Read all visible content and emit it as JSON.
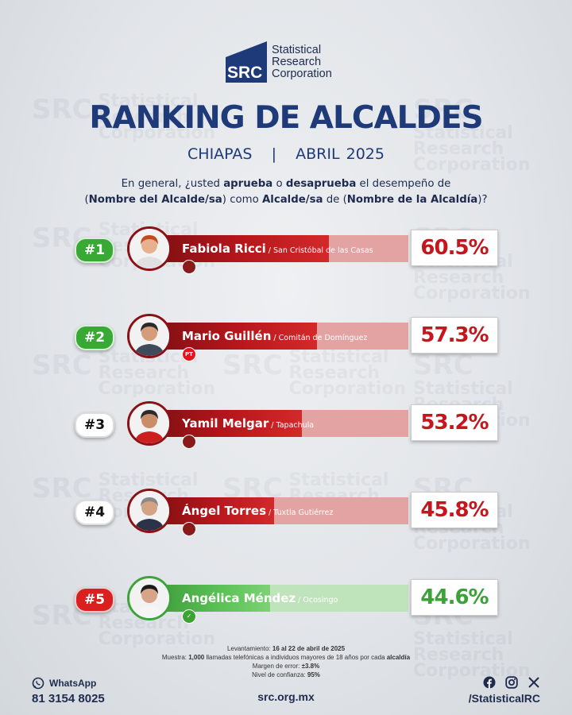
{
  "brand": {
    "mark": "SRC",
    "line1": "Statistical",
    "line2": "Research",
    "line3": "Corporation"
  },
  "colors": {
    "navy": "#1f3a78",
    "red": "#c4161c",
    "green": "#3aa236"
  },
  "header": {
    "title": "RANKING DE ALCALDES",
    "subtitle_place": "CHIAPAS",
    "subtitle_sep": "|",
    "subtitle_date": "ABRIL 2025"
  },
  "question": {
    "p1": "En general, ¿usted ",
    "aprueba": "aprueba",
    "p2": " o ",
    "desaprueba": "desaprueba",
    "p3": " el desempeño de",
    "p4": "(",
    "nombre_alcalde": "Nombre del Alcalde/sa",
    "p5": ") como ",
    "alcalde_sa": "Alcalde/sa",
    "p6": " de (",
    "nombre_alcaldia": "Nombre de la Alcaldía",
    "p7": ")?"
  },
  "chart_data": {
    "type": "bar",
    "title": "RANKING DE ALCALDES",
    "categories": [
      "Fabiola Ricci",
      "Mario Guillén",
      "Yamil Melgar",
      "Ángel Torres",
      "Angélica Méndez"
    ],
    "values": [
      60.5,
      57.3,
      53.2,
      45.8,
      44.6
    ],
    "ylim": [
      0,
      100
    ],
    "items": [
      {
        "rank": "#1",
        "name": "Fabiola Ricci",
        "place": " / San Cristóbal de las Casas",
        "value": 60.5,
        "label": "60.5%",
        "color": "red",
        "rank_style": "green",
        "party": "morena"
      },
      {
        "rank": "#2",
        "name": "Mario Guillén",
        "place": " / Comitán de Domínguez",
        "value": 57.3,
        "label": "57.3%",
        "color": "red",
        "rank_style": "green",
        "party": "PT"
      },
      {
        "rank": "#3",
        "name": "Yamil Melgar",
        "place": " / Tapachula",
        "value": 53.2,
        "label": "53.2%",
        "color": "red",
        "rank_style": "white",
        "party": "morena"
      },
      {
        "rank": "#4",
        "name": "Ángel Torres",
        "place": " / Tuxtla Gutiérrez",
        "value": 45.8,
        "label": "45.8%",
        "color": "red",
        "rank_style": "white",
        "party": "morena"
      },
      {
        "rank": "#5",
        "name": "Angélica Méndez",
        "place": " / Ocosingo",
        "value": 44.6,
        "label": "44.6%",
        "color": "green",
        "rank_style": "red",
        "party": "VERDE"
      }
    ]
  },
  "footer": {
    "lev_label": "Levantamiento: ",
    "lev_value": "16 al 22 de abril de 2025",
    "muestra_label": "Muestra: ",
    "muestra_value": "1,000",
    "muestra_text": " llamadas telefónicas a individuos mayores de 18 años por cada ",
    "muestra_end": "alcaldía",
    "margen_label": "Margen de error: ",
    "margen_value": "±3.8%",
    "nivel_label": "Nivel de confianza: ",
    "nivel_value": "95%",
    "whatsapp_label": "WhatsApp",
    "phone": "81 3154 8025",
    "site": "src.org.mx",
    "handle": "/StatisticalRC"
  }
}
